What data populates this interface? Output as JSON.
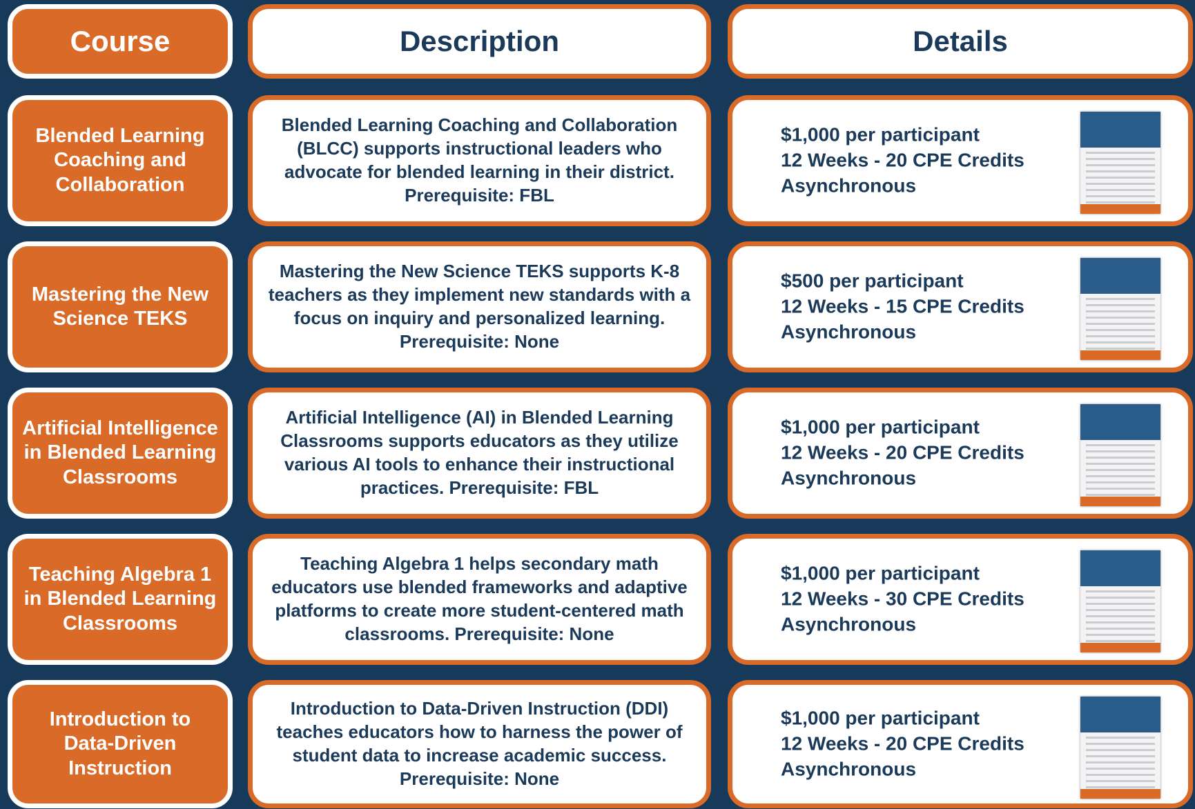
{
  "header": {
    "course": "Course",
    "description": "Description",
    "details": "Details"
  },
  "rows": [
    {
      "course": "Blended Learning Coaching and Collaboration",
      "description": "Blended Learning Coaching and Collaboration (BLCC) supports instructional leaders who advocate for blended learning in their district. Prerequisite: FBL",
      "details": [
        "$1,000 per participant",
        "12 Weeks - 20 CPE Credits",
        "Asynchronous"
      ]
    },
    {
      "course": "Mastering the New Science TEKS",
      "description": "Mastering the New Science TEKS supports K-8 teachers as they implement new standards with a focus on inquiry and personalized learning.  Prerequisite: None",
      "details": [
        "$500 per participant",
        "12 Weeks - 15 CPE Credits",
        "Asynchronous"
      ]
    },
    {
      "course": "Artificial Intelligence in Blended Learning Classrooms",
      "description": "Artificial Intelligence (AI) in Blended Learning Classrooms supports educators as they utilize various AI tools to enhance their instructional practices. Prerequisite: FBL",
      "details": [
        "$1,000 per participant",
        "12 Weeks - 20 CPE Credits",
        "Asynchronous"
      ]
    },
    {
      "course": "Teaching Algebra 1 in Blended Learning Classrooms",
      "description": "Teaching Algebra 1 helps secondary math educators use blended frameworks and adaptive platforms to create more student-centered math classrooms. Prerequisite: None",
      "details": [
        "$1,000 per participant",
        "12 Weeks - 30 CPE Credits",
        "Asynchronous"
      ]
    },
    {
      "course": "Introduction to Data-Driven Instruction",
      "description": "Introduction to Data-Driven Instruction (DDI) teaches educators how to harness the power of student data to increase academic success. Prerequisite: None",
      "details": [
        "$1,000 per participant",
        "12 Weeks - 20 CPE Credits",
        "Asynchronous"
      ]
    }
  ]
}
